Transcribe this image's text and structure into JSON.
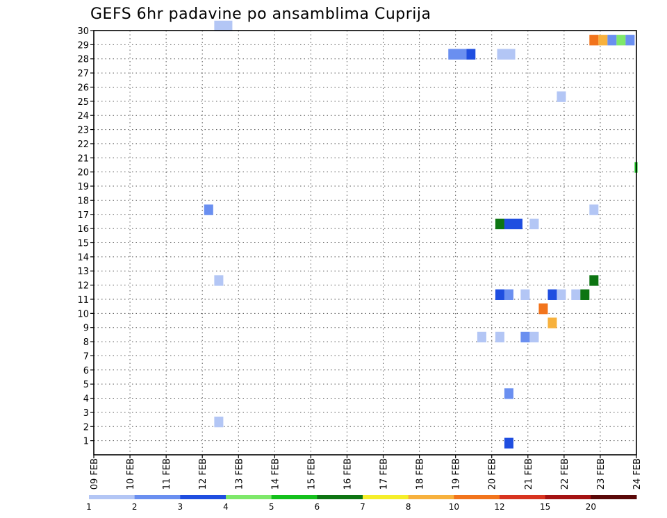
{
  "chart_data": {
    "type": "heatmap",
    "title": "GEFS 6hr padavine po ansamblima Cuprija",
    "x_tick_labels": [
      "09 FEB",
      "10 FEB",
      "11 FEB",
      "12 FEB",
      "13 FEB",
      "14 FEB",
      "15 FEB",
      "16 FEB",
      "17 FEB",
      "18 FEB",
      "19 FEB",
      "20 FEB",
      "21 FEB",
      "22 FEB",
      "23 FEB",
      "24 FEB"
    ],
    "x_range_days": [
      0,
      15
    ],
    "y_tick_labels": [
      "1",
      "2",
      "3",
      "4",
      "5",
      "6",
      "7",
      "8",
      "9",
      "10",
      "11",
      "12",
      "13",
      "14",
      "15",
      "16",
      "17",
      "18",
      "19",
      "20",
      "21",
      "22",
      "23",
      "24",
      "25",
      "26",
      "27",
      "28",
      "29",
      "30"
    ],
    "y_range": [
      0,
      30
    ],
    "grid": true,
    "legend": {
      "placement": "bottom",
      "labels": [
        "1",
        "2",
        "3",
        "4",
        "5",
        "6",
        "7",
        "8",
        "10",
        "12",
        "15",
        "20"
      ],
      "colors": [
        "#b3c6f5",
        "#6a8ff0",
        "#1f4ee0",
        "#7ee86a",
        "#14c01c",
        "#0d7512",
        "#f5ee2a",
        "#f7b13d",
        "#f2741c",
        "#d83420",
        "#a51212",
        "#5a0808"
      ]
    },
    "cells": [
      {
        "member": 30,
        "time": 3.33,
        "width": 0.5,
        "level": 1
      },
      {
        "member": 29,
        "time": 13.7,
        "width": 0.25,
        "level": 9
      },
      {
        "member": 29,
        "time": 13.95,
        "width": 0.25,
        "level": 8
      },
      {
        "member": 29,
        "time": 14.2,
        "width": 0.25,
        "level": 2
      },
      {
        "member": 29,
        "time": 14.45,
        "width": 0.25,
        "level": 4
      },
      {
        "member": 29,
        "time": 14.7,
        "width": 0.25,
        "level": 2
      },
      {
        "member": 28,
        "time": 9.8,
        "width": 0.5,
        "level": 2
      },
      {
        "member": 28,
        "time": 10.3,
        "width": 0.25,
        "level": 3
      },
      {
        "member": 28,
        "time": 11.15,
        "width": 0.5,
        "level": 1
      },
      {
        "member": 25,
        "time": 12.8,
        "width": 0.25,
        "level": 1
      },
      {
        "member": 20,
        "time": 14.95,
        "width": 0.08,
        "level": 5
      },
      {
        "member": 17,
        "time": 3.05,
        "width": 0.25,
        "level": 2
      },
      {
        "member": 17,
        "time": 13.7,
        "width": 0.25,
        "level": 1
      },
      {
        "member": 16,
        "time": 11.1,
        "width": 0.25,
        "level": 6
      },
      {
        "member": 16,
        "time": 11.35,
        "width": 0.5,
        "level": 3
      },
      {
        "member": 16,
        "time": 12.05,
        "width": 0.25,
        "level": 1
      },
      {
        "member": 12,
        "time": 3.33,
        "width": 0.25,
        "level": 1
      },
      {
        "member": 12,
        "time": 13.7,
        "width": 0.25,
        "level": 6
      },
      {
        "member": 11,
        "time": 11.1,
        "width": 0.25,
        "level": 3
      },
      {
        "member": 11,
        "time": 11.35,
        "width": 0.25,
        "level": 2
      },
      {
        "member": 11,
        "time": 11.8,
        "width": 0.25,
        "level": 1
      },
      {
        "member": 11,
        "time": 12.55,
        "width": 0.25,
        "level": 3
      },
      {
        "member": 11,
        "time": 12.8,
        "width": 0.25,
        "level": 1
      },
      {
        "member": 11,
        "time": 13.2,
        "width": 0.25,
        "level": 1
      },
      {
        "member": 11,
        "time": 13.45,
        "width": 0.25,
        "level": 6
      },
      {
        "member": 10,
        "time": 12.3,
        "width": 0.25,
        "level": 9
      },
      {
        "member": 9,
        "time": 12.55,
        "width": 0.25,
        "level": 8
      },
      {
        "member": 8,
        "time": 10.6,
        "width": 0.25,
        "level": 1
      },
      {
        "member": 8,
        "time": 11.1,
        "width": 0.25,
        "level": 1
      },
      {
        "member": 8,
        "time": 11.8,
        "width": 0.25,
        "level": 2
      },
      {
        "member": 8,
        "time": 12.05,
        "width": 0.25,
        "level": 1
      },
      {
        "member": 4,
        "time": 11.35,
        "width": 0.25,
        "level": 2
      },
      {
        "member": 2,
        "time": 3.33,
        "width": 0.25,
        "level": 1
      },
      {
        "member": 0.5,
        "time": 11.35,
        "width": 0.25,
        "level": 3
      }
    ]
  }
}
